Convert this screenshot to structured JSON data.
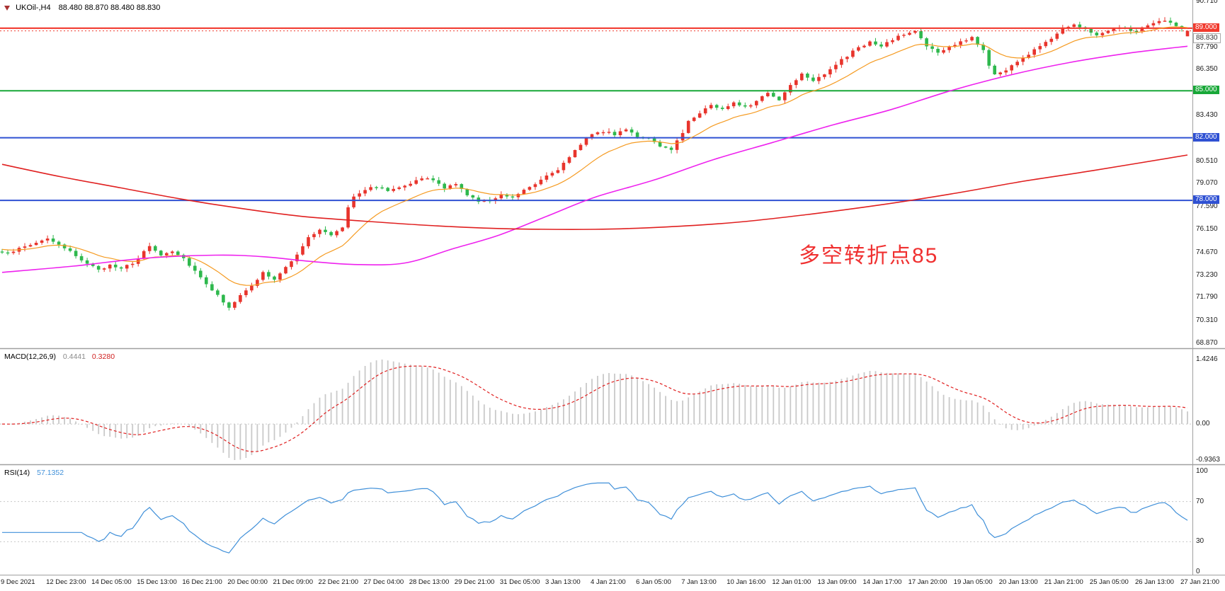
{
  "header": {
    "symbol_line": "UKOil-,H4",
    "ohlc_text": "88.480 88.870 88.480 88.830"
  },
  "chart_data": [
    {
      "type": "candlestick",
      "symbol": "UKOil-",
      "timeframe": "H4",
      "current_bar": {
        "open": 88.48,
        "high": 88.87,
        "low": 88.48,
        "close": 88.83
      },
      "bars_count": 210,
      "colors": {
        "up": "#e8342c",
        "down": "#2eb84d",
        "background": "#ffffff",
        "axis_text": "#1a1a1a"
      },
      "y_axis_ticks": [
        "90.710",
        "87.790",
        "86.350",
        "83.430",
        "80.510",
        "79.070",
        "77.590",
        "76.150",
        "74.670",
        "73.230",
        "71.790",
        "70.310",
        "68.870"
      ],
      "price_badges": [
        {
          "value": "89.000",
          "price": 89.0,
          "color": "#f13a2e",
          "text_color": "#ffffff"
        },
        {
          "value": "88.830",
          "price": 88.83,
          "color": "#ffffff",
          "text_color": "#333333",
          "border": "#aaaaaa"
        },
        {
          "value": "85.000",
          "price": 85.0,
          "color": "#18a838",
          "text_color": "#ffffff"
        },
        {
          "value": "82.000",
          "price": 82.0,
          "color": "#2f51d3",
          "text_color": "#ffffff"
        },
        {
          "value": "78.000",
          "price": 78.0,
          "color": "#2f51d3",
          "text_color": "#ffffff"
        }
      ],
      "horizontal_lines": [
        {
          "price": 89.0,
          "color": "#f13a2e",
          "width": 2.2
        },
        {
          "price": 85.0,
          "color": "#18a838",
          "width": 2
        },
        {
          "price": 82.0,
          "color": "#2f51d3",
          "width": 2
        },
        {
          "price": 78.0,
          "color": "#2f51d3",
          "width": 2
        }
      ],
      "current_price_line": {
        "price": 88.83,
        "color": "#f13a2e",
        "style": "dashed"
      },
      "close_waypoints": [
        [
          0,
          74.6
        ],
        [
          3,
          74.9
        ],
        [
          6,
          75.3
        ],
        [
          8,
          75.6
        ],
        [
          10,
          75.1
        ],
        [
          12,
          74.7
        ],
        [
          15,
          74.0
        ],
        [
          17,
          73.5
        ],
        [
          19,
          73.9
        ],
        [
          21,
          73.7
        ],
        [
          23,
          73.9
        ],
        [
          26,
          75.1
        ],
        [
          28,
          74.5
        ],
        [
          30,
          74.8
        ],
        [
          32,
          74.3
        ],
        [
          34,
          73.5
        ],
        [
          36,
          72.7
        ],
        [
          38,
          71.9
        ],
        [
          40,
          71.2
        ],
        [
          42,
          71.9
        ],
        [
          44,
          72.5
        ],
        [
          46,
          73.4
        ],
        [
          48,
          72.9
        ],
        [
          50,
          73.7
        ],
        [
          52,
          74.6
        ],
        [
          54,
          75.6
        ],
        [
          56,
          76.1
        ],
        [
          58,
          75.8
        ],
        [
          60,
          76.3
        ],
        [
          61,
          77.6
        ],
        [
          62,
          78.3
        ],
        [
          64,
          78.7
        ],
        [
          66,
          78.9
        ],
        [
          68,
          78.6
        ],
        [
          70,
          78.9
        ],
        [
          72,
          79.1
        ],
        [
          74,
          79.4
        ],
        [
          76,
          79.3
        ],
        [
          78,
          78.8
        ],
        [
          80,
          79.0
        ],
        [
          82,
          78.4
        ],
        [
          84,
          77.9
        ],
        [
          86,
          78.0
        ],
        [
          88,
          78.4
        ],
        [
          90,
          78.2
        ],
        [
          92,
          78.7
        ],
        [
          94,
          79.1
        ],
        [
          96,
          79.6
        ],
        [
          98,
          80.0
        ],
        [
          100,
          80.7
        ],
        [
          102,
          81.6
        ],
        [
          104,
          82.3
        ],
        [
          106,
          82.4
        ],
        [
          108,
          82.2
        ],
        [
          110,
          82.6
        ],
        [
          112,
          82.1
        ],
        [
          114,
          81.9
        ],
        [
          116,
          81.4
        ],
        [
          118,
          81.3
        ],
        [
          120,
          82.3
        ],
        [
          121,
          83.1
        ],
        [
          123,
          83.6
        ],
        [
          125,
          84.1
        ],
        [
          127,
          83.8
        ],
        [
          129,
          84.3
        ],
        [
          131,
          84.0
        ],
        [
          133,
          84.3
        ],
        [
          135,
          84.9
        ],
        [
          137,
          84.4
        ],
        [
          139,
          85.4
        ],
        [
          141,
          86.1
        ],
        [
          143,
          85.7
        ],
        [
          145,
          86.1
        ],
        [
          147,
          86.7
        ],
        [
          149,
          87.2
        ],
        [
          151,
          87.8
        ],
        [
          153,
          88.1
        ],
        [
          155,
          87.8
        ],
        [
          157,
          88.3
        ],
        [
          159,
          88.6
        ],
        [
          161,
          88.8
        ],
        [
          163,
          87.9
        ],
        [
          165,
          87.4
        ],
        [
          167,
          87.8
        ],
        [
          169,
          88.1
        ],
        [
          171,
          88.4
        ],
        [
          173,
          87.6
        ],
        [
          174,
          86.6
        ],
        [
          175,
          86.1
        ],
        [
          177,
          86.3
        ],
        [
          179,
          86.9
        ],
        [
          181,
          87.3
        ],
        [
          183,
          87.9
        ],
        [
          185,
          88.4
        ],
        [
          187,
          89.0
        ],
        [
          189,
          89.3
        ],
        [
          191,
          88.9
        ],
        [
          193,
          88.6
        ],
        [
          195,
          88.8
        ],
        [
          197,
          89.1
        ],
        [
          199,
          88.8
        ],
        [
          201,
          89.0
        ],
        [
          203,
          89.3
        ],
        [
          205,
          89.5
        ],
        [
          207,
          89.1
        ],
        [
          209,
          88.83
        ]
      ],
      "moving_averages": [
        {
          "name": "fast-ma",
          "color": "#f59b22",
          "type": "ema",
          "period": 14,
          "seed": 74.9
        },
        {
          "name": "mid-ma",
          "color": "#ee22ee",
          "type": "waypoints",
          "points": [
            [
              0,
              73.4
            ],
            [
              0.06,
              73.8
            ],
            [
              0.12,
              74.3
            ],
            [
              0.18,
              74.5
            ],
            [
              0.22,
              74.4
            ],
            [
              0.26,
              74.1
            ],
            [
              0.3,
              73.9
            ],
            [
              0.34,
              74.0
            ],
            [
              0.38,
              74.9
            ],
            [
              0.42,
              75.8
            ],
            [
              0.46,
              77.0
            ],
            [
              0.5,
              78.2
            ],
            [
              0.55,
              79.3
            ],
            [
              0.6,
              80.6
            ],
            [
              0.65,
              81.7
            ],
            [
              0.7,
              82.8
            ],
            [
              0.75,
              83.8
            ],
            [
              0.8,
              85.0
            ],
            [
              0.85,
              86.0
            ],
            [
              0.9,
              86.8
            ],
            [
              0.95,
              87.4
            ],
            [
              1,
              87.85
            ]
          ]
        },
        {
          "name": "slow-ma",
          "color": "#e02020",
          "type": "waypoints",
          "points": [
            [
              0,
              80.3
            ],
            [
              0.05,
              79.5
            ],
            [
              0.1,
              78.8
            ],
            [
              0.15,
              78.1
            ],
            [
              0.2,
              77.5
            ],
            [
              0.25,
              77.0
            ],
            [
              0.3,
              76.7
            ],
            [
              0.36,
              76.4
            ],
            [
              0.42,
              76.2
            ],
            [
              0.5,
              76.15
            ],
            [
              0.56,
              76.3
            ],
            [
              0.62,
              76.6
            ],
            [
              0.68,
              77.1
            ],
            [
              0.74,
              77.7
            ],
            [
              0.8,
              78.4
            ],
            [
              0.86,
              79.2
            ],
            [
              0.92,
              79.9
            ],
            [
              1,
              80.9
            ]
          ]
        }
      ],
      "x_labels": [
        "9 Dec 2021",
        "12 Dec 23:00",
        "14 Dec 05:00",
        "15 Dec 13:00",
        "16 Dec 21:00",
        "20 Dec 00:00",
        "21 Dec 09:00",
        "22 Dec 21:00",
        "27 Dec 04:00",
        "28 Dec 13:00",
        "29 Dec 21:00",
        "31 Dec 05:00",
        "3 Jan 13:00",
        "4 Jan 21:00",
        "6 Jan 05:00",
        "7 Jan 13:00",
        "10 Jan 16:00",
        "12 Jan 01:00",
        "13 Jan 09:00",
        "14 Jan 17:00",
        "17 Jan 20:00",
        "19 Jan 05:00",
        "20 Jan 13:00",
        "21 Jan 21:00",
        "25 Jan 05:00",
        "26 Jan 13:00",
        "27 Jan 21:00"
      ],
      "annotation": {
        "text": "多空转折点85",
        "color": "#f03030"
      }
    },
    {
      "type": "macd",
      "label": "MACD(12,26,9)",
      "main_value": "0.4441",
      "signal_value": "0.3280",
      "params": {
        "fast": 12,
        "slow": 26,
        "signal": 9
      },
      "axis": {
        "max": "1.4246",
        "zero": "0.00",
        "min": "-0.9363"
      },
      "histogram_color": "#c9c9c9",
      "signal_color": "#e02020"
    },
    {
      "type": "rsi",
      "label": "RSI(14)",
      "value": "57.1352",
      "period": 14,
      "line_color": "#4090d9",
      "levels": [
        70,
        30
      ],
      "axis_ticks": [
        "100",
        "70",
        "30",
        "0"
      ]
    }
  ]
}
